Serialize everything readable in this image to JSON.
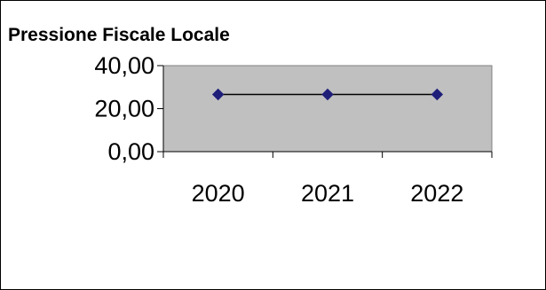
{
  "chart_data": {
    "type": "line",
    "title": "Pressione Fiscale Locale",
    "xlabel": "",
    "ylabel": "",
    "categories": [
      "2020",
      "2021",
      "2022"
    ],
    "series": [
      {
        "values": [
          26.6,
          26.6,
          26.6
        ]
      }
    ],
    "ylim": [
      0,
      40
    ],
    "yticks": [
      0,
      20,
      40
    ],
    "ytick_labels": [
      "0,00",
      "20,00",
      "40,00"
    ],
    "grid": false,
    "legend": "none",
    "colors": {
      "plot_area": "#c0c0c0",
      "line": "#000000",
      "marker": "#1f1f7a",
      "border": "#808080"
    }
  }
}
